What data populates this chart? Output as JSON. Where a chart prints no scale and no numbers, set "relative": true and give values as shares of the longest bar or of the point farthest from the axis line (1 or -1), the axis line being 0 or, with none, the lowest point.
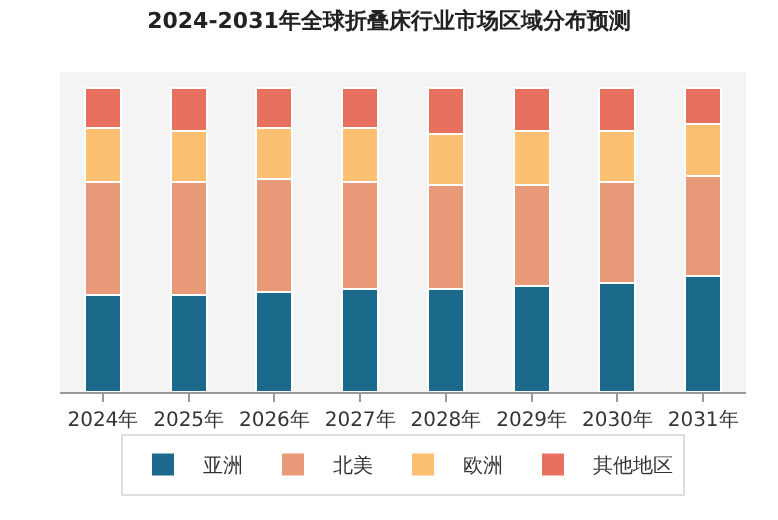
{
  "chart_data": {
    "type": "bar",
    "title": "2024-2031年全球折叠床行业市场区域分布预测",
    "relative": true,
    "stacked": true,
    "legend": "bottom",
    "categories": [
      "2024年",
      "2025年",
      "2026年",
      "2027年",
      "2028年",
      "2029年",
      "2030年",
      "2031年"
    ],
    "series": [
      {
        "name": "亚洲",
        "color": "#1b6a8c",
        "values": [
          0.32,
          0.32,
          0.33,
          0.34,
          0.34,
          0.35,
          0.36,
          0.38
        ]
      },
      {
        "name": "北美",
        "color": "#e89a78",
        "values": [
          0.37,
          0.37,
          0.37,
          0.35,
          0.34,
          0.33,
          0.33,
          0.33
        ]
      },
      {
        "name": "欧洲",
        "color": "#fdbf72",
        "values": [
          0.18,
          0.17,
          0.17,
          0.18,
          0.17,
          0.18,
          0.17,
          0.17
        ]
      },
      {
        "name": "其他地区",
        "color": "#e8705e",
        "values": [
          0.13,
          0.14,
          0.13,
          0.13,
          0.15,
          0.14,
          0.14,
          0.12
        ]
      }
    ]
  }
}
